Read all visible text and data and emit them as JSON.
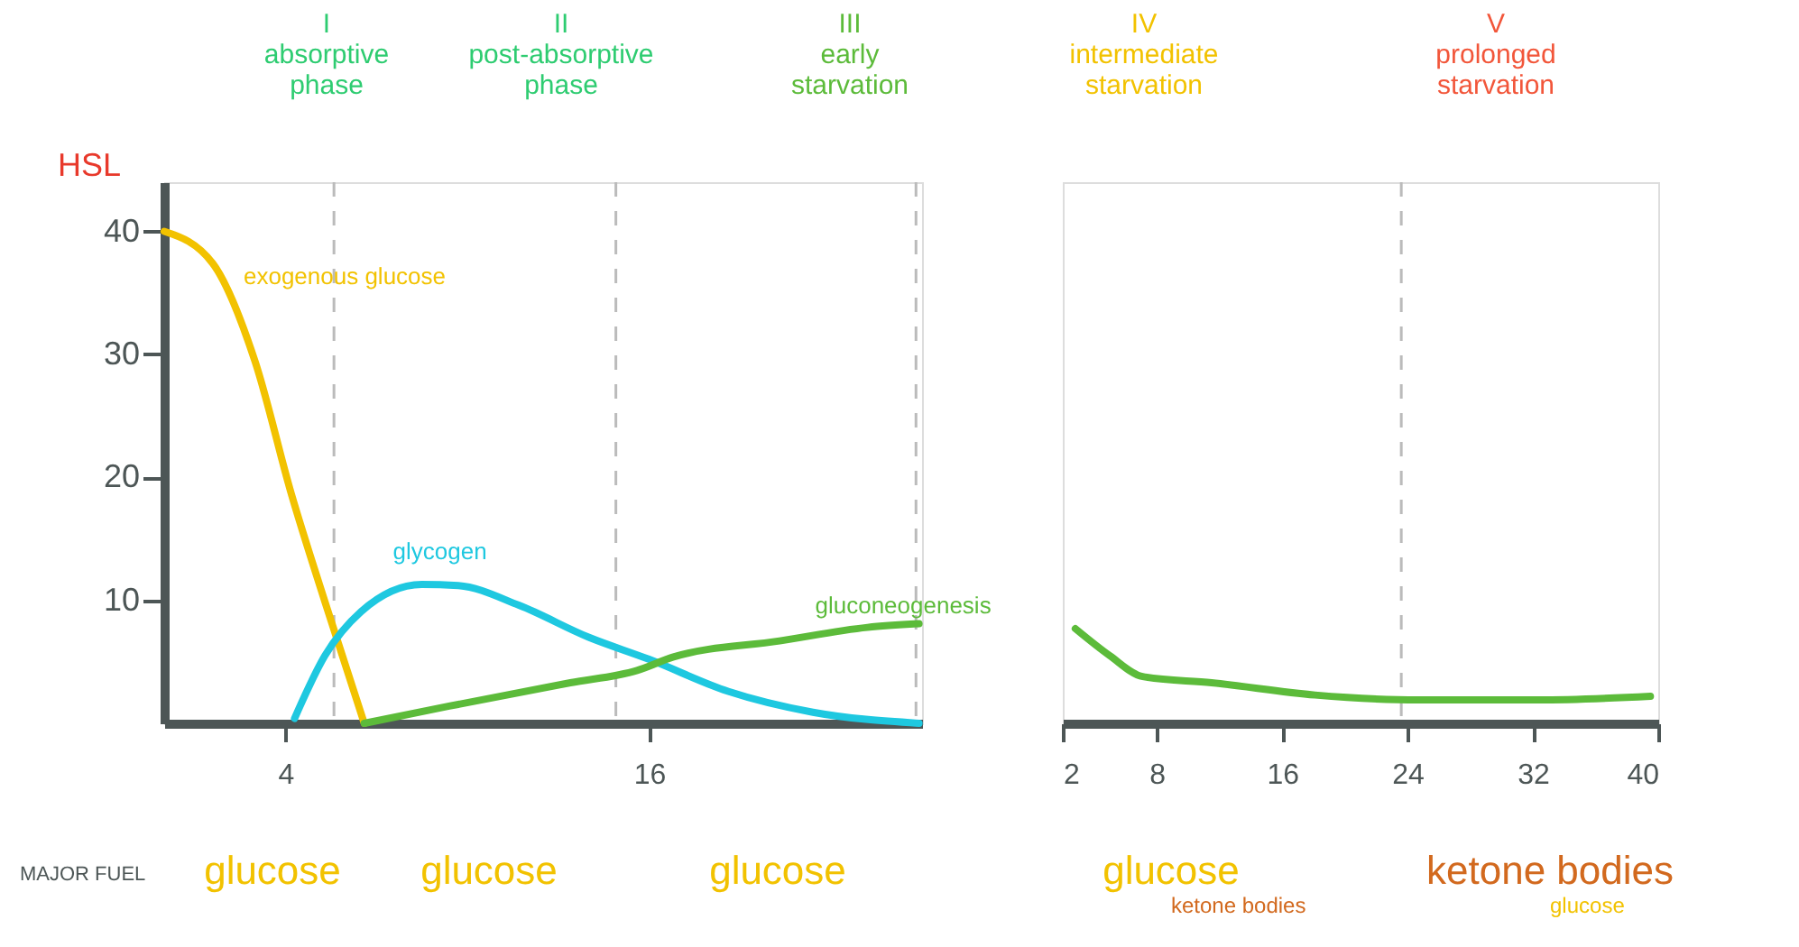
{
  "chart_data": [
    {
      "type": "line",
      "ylabel": "HSL",
      "xlim": [
        0,
        25
      ],
      "xticks": [
        4,
        16
      ],
      "ylim": [
        0,
        44
      ],
      "yticks": [
        10,
        20,
        30,
        40
      ],
      "grid": false,
      "marker": "none",
      "line_style": "solid",
      "series": [
        {
          "name": "exogenous glucose",
          "color": "#f2c200",
          "x": [
            0,
            1.6,
            3.0,
            4.2,
            5.3,
            6.6
          ],
          "values": [
            40,
            37.4,
            29.4,
            18.6,
            9.9,
            0
          ]
        },
        {
          "name": "glycogen",
          "color": "#1ec8e0",
          "x": [
            4.3,
            5.3,
            6.5,
            8.5,
            9.7,
            11.7,
            14.0,
            16.0,
            18.6,
            21.4,
            24.9
          ],
          "values": [
            0.4,
            5.5,
            9.1,
            11.3,
            11.2,
            9.6,
            7.0,
            5.2,
            2.6,
            0.9,
            0
          ]
        },
        {
          "name": "gluconeogenesis",
          "color": "#5cbb3a",
          "x": [
            6.6,
            9.4,
            13.4,
            15.6,
            16.8,
            20.3,
            23.2,
            24.9
          ],
          "values": [
            0,
            1.4,
            3.3,
            4.3,
            5.4,
            6.7,
            7.8,
            8.1
          ]
        }
      ],
      "ref_lines": [
        {
          "axis": "x",
          "value": 5.6,
          "color": "#bbbbbb",
          "line_style": "dashed"
        },
        {
          "axis": "x",
          "value": 14.9,
          "color": "#bbbbbb",
          "line_style": "dashed"
        },
        {
          "axis": "x",
          "value": 24.8,
          "color": "#bbbbbb",
          "line_style": "dashed"
        }
      ],
      "annotations": [
        "I\nabsorptive\nphase",
        "II\npost-absorptive\nphase",
        "III\nearly\nstarvation",
        "MAJOR FUEL",
        "glucose",
        "glucose",
        "glucose"
      ]
    },
    {
      "type": "line",
      "xlim": [
        2,
        40
      ],
      "xticks": [
        2,
        8,
        16,
        24,
        32,
        40
      ],
      "ylim": [
        0,
        44
      ],
      "tick_labels": "x",
      "grid": false,
      "marker": "none",
      "line_style": "solid",
      "series": [
        {
          "color": "#5cbb3a",
          "x": [
            2.8,
            5.0,
            7.1,
            11.5,
            18.1,
            24.7,
            32.3,
            39.5
          ],
          "values": [
            7.7,
            5.5,
            3.8,
            3.3,
            2.3,
            1.9,
            1.9,
            2.2
          ]
        }
      ],
      "ref_lines": [
        {
          "axis": "x",
          "value": 23.6,
          "color": "#bbbbbb",
          "line_style": "dashed"
        }
      ],
      "annotations": [
        "IV\nintermediate\nstarvation",
        "V\nprolonged\nstarvation",
        "glucose",
        "ketone bodies",
        "ketone bodies",
        "glucose"
      ]
    }
  ]
}
